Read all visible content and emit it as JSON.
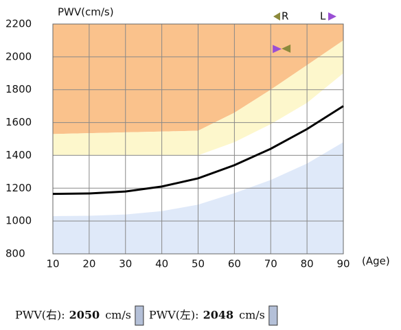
{
  "chart_data": {
    "type": "line",
    "y_axis_label": "PWV(cm/s)",
    "x_axis_label": "(Age)",
    "x": [
      10,
      20,
      30,
      40,
      50,
      60,
      70,
      80,
      90
    ],
    "series": [
      {
        "color": "#fac28c",
        "fill": "above",
        "values": [
          1530,
          1535,
          1540,
          1545,
          1550,
          1660,
          1800,
          1950,
          2100
        ]
      },
      {
        "color": "#fdf7cc",
        "fill": "to-previous",
        "values": [
          1400,
          1400,
          1400,
          1400,
          1400,
          1480,
          1590,
          1720,
          1900
        ]
      },
      {
        "color": "#dfe9f9",
        "fill": "below",
        "values": [
          1030,
          1032,
          1040,
          1060,
          1100,
          1170,
          1250,
          1350,
          1480
        ]
      },
      {
        "color": "#000000",
        "fill": "none",
        "values": [
          1165,
          1168,
          1180,
          1210,
          1260,
          1340,
          1440,
          1560,
          1700
        ]
      }
    ],
    "xlim": [
      10,
      90
    ],
    "ylim": [
      800,
      2200
    ],
    "xticks": [
      10,
      20,
      30,
      40,
      50,
      60,
      70,
      80,
      90
    ],
    "yticks": [
      800,
      1000,
      1200,
      1400,
      1600,
      1800,
      2000,
      2200
    ],
    "grid": true,
    "legend": [
      {
        "label": "R",
        "color": "#8c8a3c"
      },
      {
        "label": "L",
        "color": "#9a4fd4"
      }
    ],
    "marker_age": 73,
    "readings": [
      {
        "label": "PWV(右):",
        "value": 2050,
        "unit": "cm/s"
      },
      {
        "label": "PWV(左):",
        "value": 2048,
        "unit": "cm/s"
      }
    ]
  }
}
